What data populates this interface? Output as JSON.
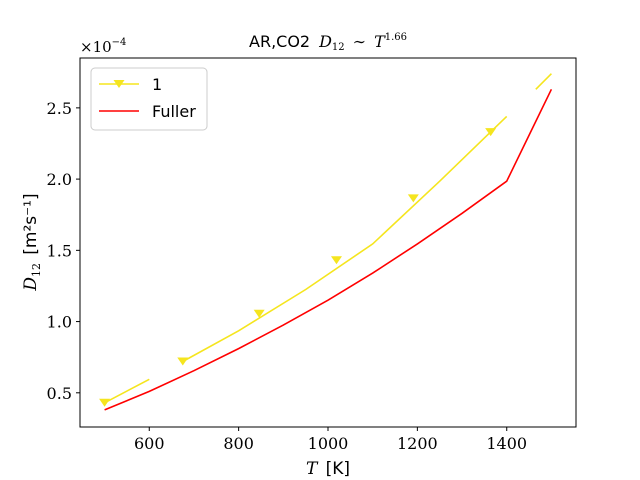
{
  "chart_data": {
    "type": "line",
    "title_prefix": "AR,CO2",
    "title_math": "D",
    "title_sub": "12",
    "title_rel": "∼",
    "title_T": "T",
    "title_exp": "1.66",
    "xlabel_var": "T",
    "xlabel_unit": "[K]",
    "ylabel_var": "D",
    "ylabel_sub": "12",
    "ylabel_unit": "[m²s⁻¹]",
    "offset_text": "×10",
    "offset_exp": "−4",
    "xlim": [
      445,
      1555
    ],
    "ylim": [
      0.26,
      2.85
    ],
    "x_ticks": [
      600,
      800,
      1000,
      1200,
      1400
    ],
    "x_tick_labels": [
      "600",
      "800",
      "1000",
      "1200",
      "1400"
    ],
    "y_ticks": [
      0.5,
      1.0,
      1.5,
      2.0,
      2.5
    ],
    "y_tick_labels": [
      "0.5",
      "1.0",
      "1.5",
      "2.0",
      "2.5"
    ],
    "legend_position": "top-left",
    "colors": {
      "series1": "#f5e51e",
      "fuller": "#ff0000"
    },
    "series": [
      {
        "name": "1",
        "segments": [
          {
            "x": [
              500,
              600
            ],
            "y": [
              0.43,
              0.595
            ]
          },
          {
            "x": [
              675,
              800,
              950,
              1100,
              1250,
              1400
            ],
            "y": [
              0.72,
              0.935,
              1.225,
              1.545,
              1.985,
              2.44
            ]
          },
          {
            "x": [
              1465,
              1500
            ],
            "y": [
              2.63,
              2.74
            ]
          }
        ],
        "marker_x": [
          500,
          675,
          846,
          1019,
          1191,
          1364
        ],
        "marker_y": [
          0.43,
          0.72,
          1.055,
          1.43,
          1.865,
          2.33
        ]
      },
      {
        "name": "Fuller",
        "x": [
          500,
          600,
          700,
          800,
          900,
          1000,
          1100,
          1200,
          1300,
          1400,
          1500
        ],
        "y": [
          0.38,
          0.51,
          0.655,
          0.81,
          0.975,
          1.15,
          1.34,
          1.545,
          1.76,
          1.985,
          2.63
        ]
      }
    ]
  }
}
